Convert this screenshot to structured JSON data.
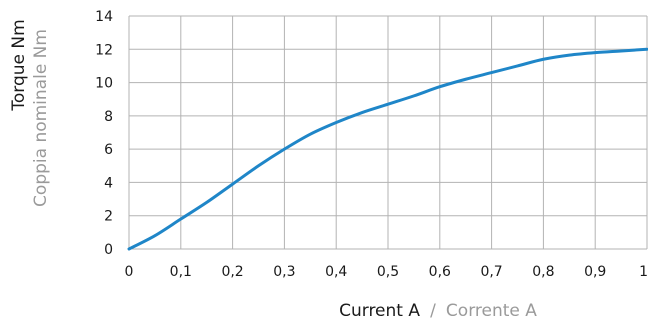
{
  "chart_data": {
    "type": "line",
    "ylabel": "Torque Nm",
    "ylabel_secondary": "Coppia nominale Nm",
    "xlabel": "Current A",
    "xlabel_separator": "/",
    "xlabel_secondary": "Corrente A",
    "xlim": [
      0,
      1
    ],
    "ylim": [
      0,
      14
    ],
    "grid": true,
    "x_ticks": [
      "0",
      "0,1",
      "0,2",
      "0,3",
      "0,4",
      "0,5",
      "0,6",
      "0,7",
      "0,8",
      "0,9",
      "1"
    ],
    "y_ticks": [
      "0",
      "2",
      "4",
      "6",
      "8",
      "10",
      "12",
      "14"
    ],
    "series": [
      {
        "color": "#1f86c8",
        "x": [
          0,
          0.05,
          0.1,
          0.15,
          0.2,
          0.25,
          0.3,
          0.35,
          0.4,
          0.45,
          0.5,
          0.55,
          0.6,
          0.65,
          0.7,
          0.75,
          0.8,
          0.85,
          0.9,
          0.95,
          1.0
        ],
        "y": [
          0,
          0.8,
          1.8,
          2.8,
          3.9,
          5.0,
          6.0,
          6.9,
          7.6,
          8.2,
          8.7,
          9.2,
          9.75,
          10.2,
          10.6,
          11.0,
          11.4,
          11.65,
          11.8,
          11.9,
          12.0
        ]
      }
    ]
  }
}
